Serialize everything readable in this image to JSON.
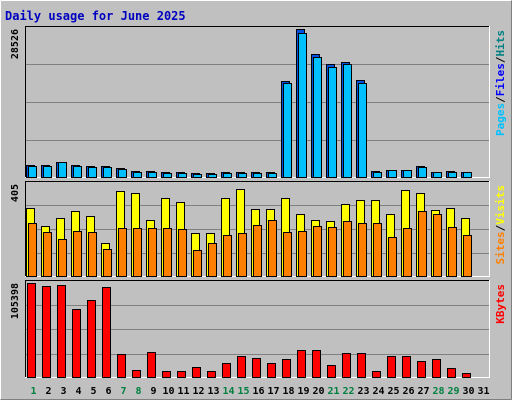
{
  "chart_data": {
    "type": "bar",
    "title": "Daily usage for June 2025",
    "days": [
      "1",
      "2",
      "3",
      "4",
      "5",
      "6",
      "7",
      "8",
      "9",
      "10",
      "11",
      "12",
      "13",
      "14",
      "15",
      "16",
      "17",
      "18",
      "19",
      "20",
      "21",
      "22",
      "23",
      "24",
      "25",
      "26",
      "27",
      "28",
      "29",
      "30",
      "31"
    ],
    "weekend_days": [
      "1",
      "7",
      "8",
      "14",
      "15",
      "21",
      "22",
      "28",
      "29"
    ],
    "panels": [
      {
        "id": "top",
        "max_label": "28526",
        "ylim": [
          0,
          28526
        ],
        "legend": [
          {
            "text": "Pages",
            "color": "#00c0ff"
          },
          {
            "text": "/",
            "color": "#000000"
          },
          {
            "text": "Files",
            "color": "#0000ff"
          },
          {
            "text": "/",
            "color": "#000000"
          },
          {
            "text": "Hits",
            "color": "#008080"
          }
        ],
        "series": [
          {
            "name": "Files",
            "color": "#0050e0",
            "values": [
              2300,
              2300,
              2900,
              2300,
              2100,
              2100,
              1700,
              1100,
              1100,
              900,
              900,
              700,
              700,
              900,
              900,
              900,
              900,
              18500,
              28526,
              23800,
              21700,
              22100,
              18700,
              1100,
              1400,
              1400,
              2100,
              1000,
              1100,
              1000,
              null
            ]
          },
          {
            "name": "Pages",
            "color": "#00c0ff",
            "values": [
              2200,
              2200,
              2800,
              2200,
              2000,
              2000,
              1600,
              1000,
              1000,
              800,
              800,
              600,
              600,
              800,
              800,
              800,
              800,
              18200,
              27800,
              23200,
              21200,
              21700,
              18200,
              1000,
              1300,
              1300,
              2000,
              900,
              1000,
              900,
              null
            ]
          }
        ]
      },
      {
        "id": "mid",
        "max_label": "405",
        "ylim": [
          0,
          405
        ],
        "legend": [
          {
            "text": "Sites",
            "color": "#ff8000"
          },
          {
            "text": "/",
            "color": "#000000"
          },
          {
            "text": "Visits",
            "color": "#ffff00"
          }
        ],
        "series": [
          {
            "name": "Visits",
            "color": "#ffff00",
            "values": [
              300,
              220,
              255,
              285,
              265,
              145,
              375,
              365,
              245,
              345,
              325,
              190,
              190,
              345,
              385,
              295,
              295,
              345,
              275,
              248,
              240,
              315,
              335,
              335,
              275,
              378,
              365,
              290,
              300,
              255,
              null
            ]
          },
          {
            "name": "Sites",
            "color": "#ff8000",
            "values": [
              235,
              195,
              165,
              200,
              195,
              120,
              210,
              210,
              210,
              210,
              205,
              115,
              145,
              180,
              190,
              225,
              245,
              195,
              200,
              220,
              215,
              240,
              235,
              235,
              170,
              210,
              285,
              275,
              215,
              180,
              null
            ]
          }
        ]
      },
      {
        "id": "bot",
        "max_label": "105398",
        "ylim": [
          0,
          105398
        ],
        "legend": [
          {
            "text": "KBytes",
            "color": "#ff0000"
          }
        ],
        "series": [
          {
            "name": "KBytes",
            "color": "#ff0000",
            "values": [
              105398,
              101500,
              102800,
              76000,
              86000,
              100800,
              26000,
              7500,
              27800,
              6500,
              6500,
              11200,
              6500,
              15500,
              23500,
              21500,
              15500,
              20500,
              30000,
              30000,
              13200,
              26500,
              26500,
              6500,
              23500,
              23500,
              18500,
              20000,
              10000,
              4000,
              null
            ]
          }
        ]
      }
    ]
  }
}
